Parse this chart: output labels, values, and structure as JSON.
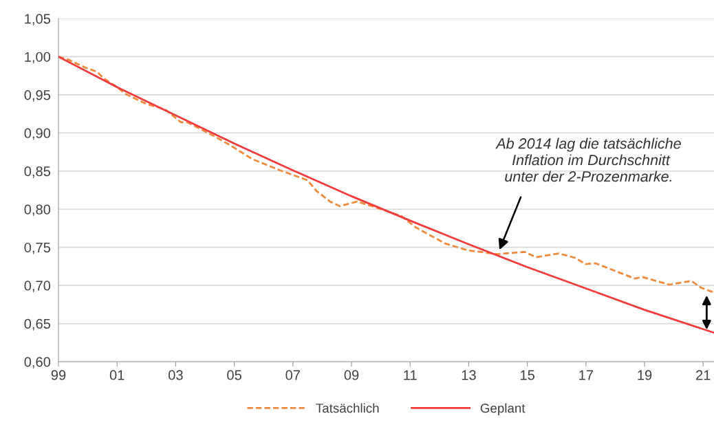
{
  "chart_data": {
    "type": "line",
    "xlim": [
      1999,
      2021.37
    ],
    "xticks": [
      {
        "value": 1999,
        "label": "99"
      },
      {
        "value": 2001,
        "label": "01"
      },
      {
        "value": 2003,
        "label": "03"
      },
      {
        "value": 2005,
        "label": "05"
      },
      {
        "value": 2007,
        "label": "07"
      },
      {
        "value": 2009,
        "label": "09"
      },
      {
        "value": 2011,
        "label": "11"
      },
      {
        "value": 2013,
        "label": "13"
      },
      {
        "value": 2015,
        "label": "15"
      },
      {
        "value": 2017,
        "label": "17"
      },
      {
        "value": 2019,
        "label": "19"
      },
      {
        "value": 2021,
        "label": "21"
      }
    ],
    "ylim": [
      0.6,
      1.05
    ],
    "yticks": [
      {
        "value": 0.6,
        "label": "0,60"
      },
      {
        "value": 0.65,
        "label": "0,65"
      },
      {
        "value": 0.7,
        "label": "0,70"
      },
      {
        "value": 0.75,
        "label": "0,75"
      },
      {
        "value": 0.8,
        "label": "0,80"
      },
      {
        "value": 0.85,
        "label": "0,85"
      },
      {
        "value": 0.9,
        "label": "0,90"
      },
      {
        "value": 0.95,
        "label": "0,95"
      },
      {
        "value": 1.0,
        "label": "1,00"
      },
      {
        "value": 1.05,
        "label": "1,05"
      }
    ],
    "grid": "y",
    "legend": "bottom",
    "series": [
      {
        "name": "Tatsächlich",
        "color": "#f08a3c",
        "line_style": "dashed",
        "x": [
          1999.0,
          1999.35,
          1999.9,
          2000.33,
          2000.53,
          2001.0,
          2001.3,
          2002.0,
          2002.64,
          2003.18,
          2003.4,
          2004.35,
          2004.9,
          2005.6,
          2006.56,
          2007.5,
          2007.8,
          2008.27,
          2008.6,
          2009.19,
          2009.94,
          2010.7,
          2011.2,
          2012.2,
          2012.97,
          2013.98,
          2014.9,
          2015.3,
          2016.07,
          2016.65,
          2016.98,
          2017.33,
          2018.67,
          2018.93,
          2019.85,
          2020.6,
          2020.93,
          2021.35
        ],
        "values": [
          1.0,
          0.996,
          0.986,
          0.98,
          0.972,
          0.96,
          0.951,
          0.938,
          0.931,
          0.914,
          0.914,
          0.895,
          0.883,
          0.866,
          0.851,
          0.838,
          0.824,
          0.81,
          0.804,
          0.81,
          0.801,
          0.791,
          0.776,
          0.755,
          0.746,
          0.741,
          0.744,
          0.737,
          0.742,
          0.736,
          0.728,
          0.729,
          0.709,
          0.711,
          0.701,
          0.706,
          0.697,
          0.691
        ]
      },
      {
        "name": "Geplant",
        "color": "#f03c3c",
        "line_style": "solid",
        "x": [
          1999,
          2001,
          2003,
          2005,
          2007,
          2009,
          2011,
          2013,
          2015,
          2017,
          2019,
          2021.37
        ],
        "values": [
          1.0,
          0.96,
          0.923,
          0.886,
          0.851,
          0.817,
          0.785,
          0.754,
          0.724,
          0.696,
          0.668,
          0.638
        ]
      }
    ],
    "annotations": [
      {
        "text": "Ab 2014 lag die tatsächliche\n Inflation im Durchschnitt\nunter der 2-Prozenmarke.",
        "x": 2014.0,
        "y": 0.742
      }
    ]
  }
}
